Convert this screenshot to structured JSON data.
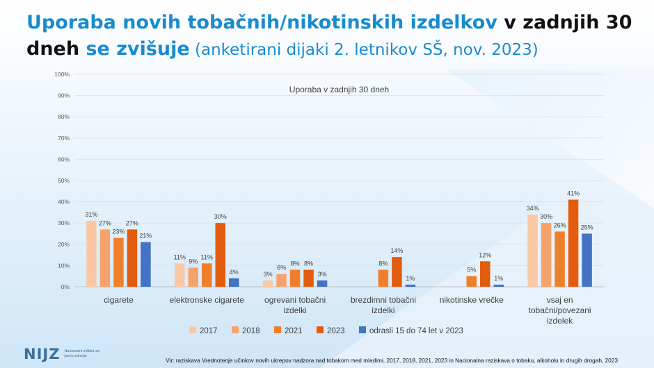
{
  "title": {
    "part1": "Uporaba novih tobačnih/nikotinskih izdelkov",
    "part2": " v zadnjih 30 dneh ",
    "part3": "se zvišuje",
    "part4": " (anketirani dijaki 2. letnikov SŠ, nov. 2023)"
  },
  "chart_data": {
    "type": "bar",
    "title": "Uporaba v zadnjih 30 dneh",
    "ylim": [
      0,
      100
    ],
    "yticks": [
      "0%",
      "10%",
      "20%",
      "30%",
      "40%",
      "50%",
      "60%",
      "70%",
      "80%",
      "90%",
      "100%"
    ],
    "categories": [
      [
        "cigarete"
      ],
      [
        "elektronske cigarete"
      ],
      [
        "ogrevani tobačni",
        "izdelki"
      ],
      [
        "brezdimni tobačni",
        "izdelki"
      ],
      [
        "nikotinske vrečke"
      ],
      [
        "vsaj en",
        "tobačni/povezani",
        "izdelek"
      ]
    ],
    "series": [
      {
        "name": "2017",
        "color": "#f9c9a5",
        "values": [
          31,
          11,
          3,
          null,
          null,
          34
        ],
        "labels": [
          "31%",
          "11%",
          "3%",
          "",
          "",
          "34%"
        ]
      },
      {
        "name": "2018",
        "color": "#f6a36b",
        "values": [
          27,
          9,
          6,
          null,
          null,
          30
        ],
        "labels": [
          "27%",
          "9%",
          "6%",
          "",
          "",
          "30%"
        ]
      },
      {
        "name": "2021",
        "color": "#f07f2c",
        "values": [
          23,
          11,
          8,
          8,
          5,
          26
        ],
        "labels": [
          "23%",
          "11%",
          "8%",
          "8%",
          "5%",
          "26%"
        ]
      },
      {
        "name": "2023",
        "color": "#e35c0e",
        "values": [
          27,
          30,
          8,
          14,
          12,
          41
        ],
        "labels": [
          "27%",
          "30%",
          "8%",
          "14%",
          "12%",
          "41%"
        ]
      },
      {
        "name": "odrasli 15 do 74 let v 2023",
        "color": "#4472c4",
        "values": [
          21,
          4,
          3,
          1,
          1,
          25
        ],
        "labels": [
          "21%",
          "4%",
          "3%",
          "1%",
          "1%",
          "25%"
        ]
      }
    ]
  },
  "footer": {
    "logo": "NIJZ",
    "logo_sub": "Nacionalni inštitut za javno zdravje",
    "source": "Vir: raziskava Vrednotenje učinkov novih ukrepov nadzora nad tobakom med mladimi, 2017, 2018, 2021, 2023 in Nacionalna raziskava o tobaku, alkoholu in drugih drogah, 2023"
  }
}
